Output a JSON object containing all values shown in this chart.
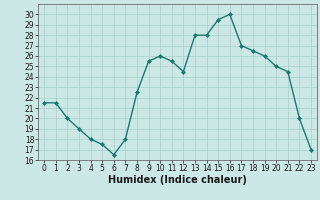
{
  "x": [
    0,
    1,
    2,
    3,
    4,
    5,
    6,
    7,
    8,
    9,
    10,
    11,
    12,
    13,
    14,
    15,
    16,
    17,
    18,
    19,
    20,
    21,
    22,
    23
  ],
  "y": [
    21.5,
    21.5,
    20.0,
    19.0,
    18.0,
    17.5,
    16.5,
    18.0,
    22.5,
    25.5,
    26.0,
    25.5,
    24.5,
    28.0,
    28.0,
    29.5,
    30.0,
    27.0,
    26.5,
    26.0,
    25.0,
    24.5,
    20.0,
    17.0
  ],
  "line_color": "#1a7a6e",
  "marker": "D",
  "marker_size": 2.0,
  "bg_color": "#cce8e6",
  "grid_color": "#a8cfcc",
  "xlabel": "Humidex (Indice chaleur)",
  "ylim": [
    16,
    31
  ],
  "xlim": [
    -0.5,
    23.5
  ],
  "yticks": [
    16,
    17,
    18,
    19,
    20,
    21,
    22,
    23,
    24,
    25,
    26,
    27,
    28,
    29,
    30
  ],
  "xticks": [
    0,
    1,
    2,
    3,
    4,
    5,
    6,
    7,
    8,
    9,
    10,
    11,
    12,
    13,
    14,
    15,
    16,
    17,
    18,
    19,
    20,
    21,
    22,
    23
  ],
  "tick_fontsize": 5.5,
  "xlabel_fontsize": 7.0,
  "line_width": 1.0
}
